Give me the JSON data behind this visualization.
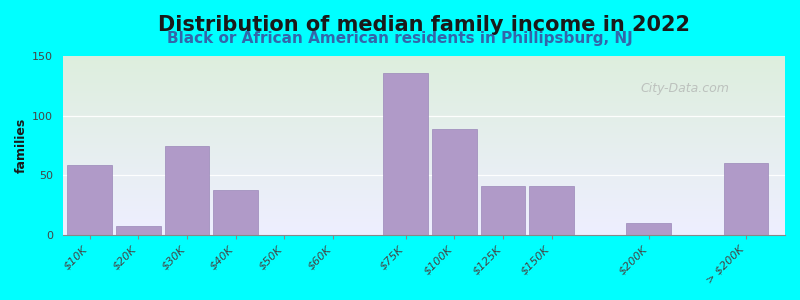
{
  "title": "Distribution of median family income in 2022",
  "subtitle": "Black or African American residents in Phillipsburg, NJ",
  "ylabel": "families",
  "background_color": "#00FFFF",
  "plot_bg_top": "#ddeedd",
  "plot_bg_bottom": "#eeeeff",
  "bar_color": "#b09ac8",
  "bar_edge_color": "#9a88b8",
  "categories": [
    "$10K",
    "$20K",
    "$30K",
    "$40K",
    "$50K",
    "$60K",
    "$75K",
    "$100K",
    "$125K",
    "$150K",
    "$200K",
    "> $200K"
  ],
  "values": [
    58,
    7,
    74,
    37,
    0,
    0,
    136,
    89,
    41,
    41,
    10,
    60
  ],
  "positions": [
    0,
    1,
    2,
    3,
    4,
    5,
    6.5,
    7.5,
    8.5,
    9.5,
    11.5,
    13.5
  ],
  "bar_width": 0.92,
  "xlim": [
    -0.55,
    14.3
  ],
  "ylim": [
    0,
    150
  ],
  "yticks": [
    0,
    50,
    100,
    150
  ],
  "title_fontsize": 15,
  "subtitle_fontsize": 11,
  "ylabel_fontsize": 9,
  "tick_fontsize": 8,
  "watermark": "City-Data.com"
}
